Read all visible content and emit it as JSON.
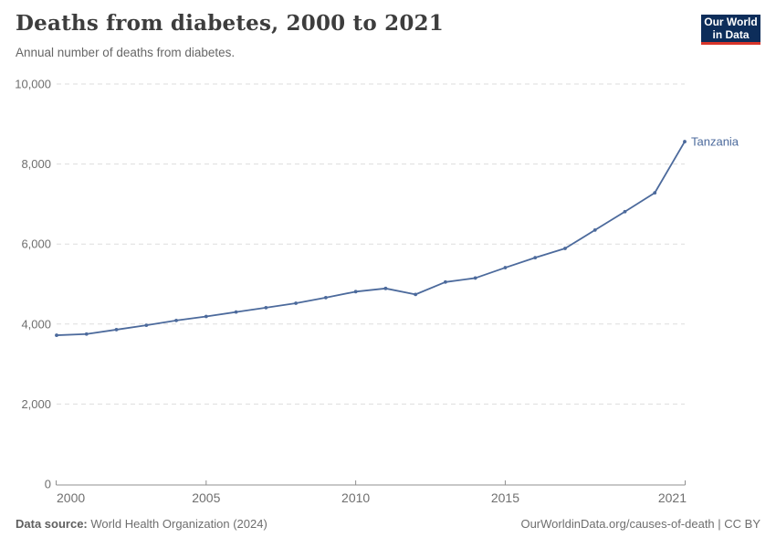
{
  "header": {
    "title": "Deaths from diabetes, 2000 to 2021",
    "subtitle": "Annual number of deaths from diabetes.",
    "logo": {
      "line1": "Our World",
      "line2": "in Data",
      "bg_color": "#0d2d5a",
      "accent_color": "#d8352a"
    }
  },
  "chart_data": {
    "type": "line",
    "title": "Deaths from diabetes, 2000 to 2021",
    "subtitle": "Annual number of deaths from diabetes.",
    "xlabel": "",
    "ylabel": "",
    "x": [
      2000,
      2001,
      2002,
      2003,
      2004,
      2005,
      2006,
      2007,
      2008,
      2009,
      2010,
      2011,
      2012,
      2013,
      2014,
      2015,
      2016,
      2017,
      2018,
      2019,
      2020,
      2021
    ],
    "series": [
      {
        "name": "Tanzania",
        "color": "#4c6a9c",
        "values": [
          3720,
          3750,
          3860,
          3970,
          4090,
          4190,
          4300,
          4410,
          4520,
          4660,
          4810,
          4890,
          4740,
          5050,
          5150,
          5410,
          5660,
          5890,
          6350,
          6810,
          7280,
          8560
        ]
      }
    ],
    "x_ticks": [
      2000,
      2005,
      2010,
      2015,
      2021
    ],
    "y_ticks": [
      0,
      2000,
      4000,
      6000,
      8000,
      10000
    ],
    "xlim": [
      2000,
      2021
    ],
    "ylim": [
      0,
      10000
    ],
    "grid": {
      "horizontal": true,
      "style": "dashed",
      "color": "#dddddd"
    },
    "axis_color": "#8f8f8f",
    "tick_label_color": "#6f6f6f",
    "legend_position": "end-of-line",
    "end_label": "Tanzania"
  },
  "footer": {
    "source_label": "Data source:",
    "source_value": "World Health Organization (2024)",
    "credit": "OurWorldinData.org/causes-of-death | CC BY"
  }
}
